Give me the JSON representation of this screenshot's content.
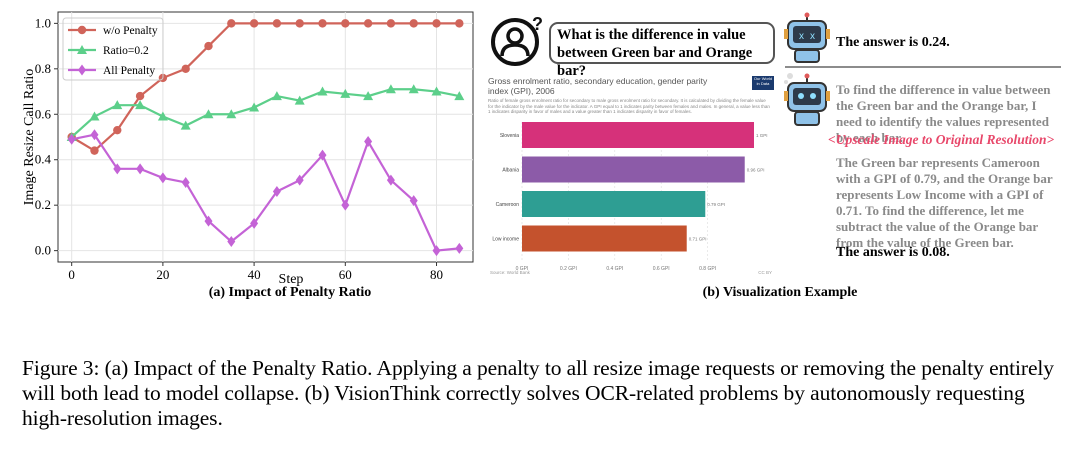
{
  "chart_data": {
    "type": "line",
    "xlabel": "Step",
    "ylabel": "Image Resize Call Ratio",
    "xlim": [
      -3,
      88
    ],
    "ylim": [
      -0.05,
      1.05
    ],
    "xticks": [
      0,
      20,
      40,
      60,
      80
    ],
    "yticks": [
      0.0,
      0.2,
      0.4,
      0.6,
      0.8,
      1.0
    ],
    "grid": true,
    "legend": "top-left",
    "series": [
      {
        "name": "w/o Penalty",
        "color": "#d0645a",
        "marker": "circle",
        "x": [
          0,
          5,
          10,
          15,
          20,
          25,
          30,
          35,
          40,
          45,
          50,
          55,
          60,
          65,
          70,
          75,
          80,
          85
        ],
        "values": [
          0.5,
          0.44,
          0.53,
          0.68,
          0.76,
          0.8,
          0.9,
          1.0,
          1.0,
          1.0,
          1.0,
          1.0,
          1.0,
          1.0,
          1.0,
          1.0,
          1.0,
          1.0
        ]
      },
      {
        "name": "Ratio=0.2",
        "color": "#5ccf8a",
        "marker": "triangle",
        "x": [
          0,
          5,
          10,
          15,
          20,
          25,
          30,
          35,
          40,
          45,
          50,
          55,
          60,
          65,
          70,
          75,
          80,
          85
        ],
        "values": [
          0.5,
          0.59,
          0.64,
          0.64,
          0.59,
          0.55,
          0.6,
          0.6,
          0.63,
          0.68,
          0.66,
          0.7,
          0.69,
          0.68,
          0.71,
          0.71,
          0.7,
          0.68
        ]
      },
      {
        "name": "All Penalty",
        "color": "#c463d6",
        "marker": "diamond",
        "x": [
          0,
          5,
          10,
          15,
          20,
          25,
          30,
          35,
          40,
          45,
          50,
          55,
          60,
          65,
          70,
          75,
          80,
          85
        ],
        "values": [
          0.49,
          0.51,
          0.36,
          0.36,
          0.32,
          0.3,
          0.13,
          0.04,
          0.12,
          0.26,
          0.31,
          0.42,
          0.2,
          0.48,
          0.31,
          0.22,
          0.0,
          0.01
        ]
      }
    ]
  },
  "captions": {
    "sub_a": "(a) Impact of Penalty Ratio",
    "sub_b": "(b) Visualization Example",
    "figure": "Figure 3: (a) Impact of the Penalty Ratio. Applying a penalty to all resize image requests or removing the penalty entirely will both lead to model collapse. (b) VisionThink correctly solves OCR-related problems by autonomously requesting high-resolution images."
  },
  "example": {
    "question": "What is the difference in value between Green bar and Orange bar?",
    "answer_first": "The answer is 0.24.",
    "reasoning_1": "To find the difference in value between the Green bar and the Orange bar, I need to identify the values represented by each bar.",
    "upscale": "<Upscale Image to Original Resolution>",
    "reasoning_2": "The Green bar represents Cameroon with a GPI of 0.79, and the Orange bar represents Low Income with a GPI of 0.71. To find the difference, let me subtract the value of the Orange bar from the value of the Green bar.",
    "answer_final": "The answer is 0.08.",
    "mini_chart": {
      "title": "Gross enrolment ratio, secondary education, gender parity index (GPI), 2006",
      "description": "Ratio of female gross enrolment ratio for secondary to male gross enrolment ratio for secondary. It is calculated by dividing the female value for the indicator by the male value for the indicator. A GPI equal to 1 indicates parity between females and males. In general, a value less than 1 indicates disparity in favor of males and a value greater than 1 indicates disparity in favor of females.",
      "logo": "Our World in Data",
      "source": "Source: World Bank",
      "license": "CC BY",
      "categories": [
        "Slovenia",
        "Albania",
        "Cameroon",
        "Low income"
      ],
      "values": [
        1.0,
        0.96,
        0.79,
        0.71
      ],
      "value_labels": [
        "1 GPI",
        "0.96 GPI",
        "0.79 GPI",
        "0.71 GPI"
      ],
      "colors": [
        "#d6317a",
        "#8c5ba8",
        "#2e9e93",
        "#c4522d"
      ],
      "xticks": [
        "0 GPI",
        "0.2 GPI",
        "0.4 GPI",
        "0.6 GPI",
        "0.8 GPI"
      ]
    }
  }
}
